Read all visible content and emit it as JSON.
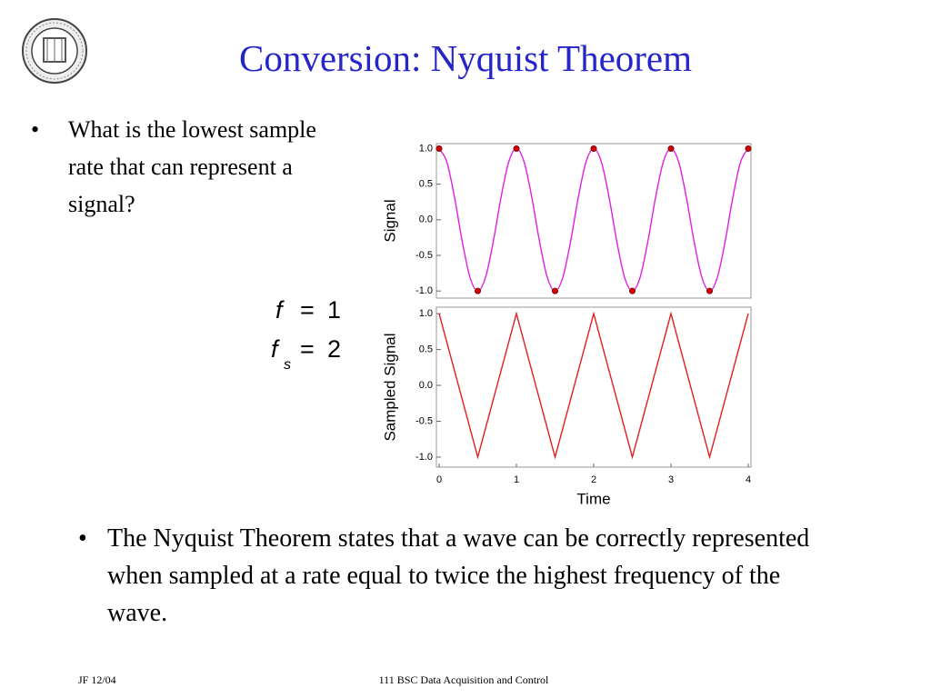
{
  "header": {
    "title": "Conversion: Nyquist Theorem"
  },
  "bullets": [
    "What is the lowest sample rate that can represent a signal?",
    "The Nyquist Theorem states that a wave can be correctly represented when sampled at a rate equal to twice the highest frequency of the wave."
  ],
  "equations": [
    {
      "symbol": "f",
      "operator": "=",
      "value": "1"
    },
    {
      "symbol": "f",
      "subscript": "s",
      "operator": "=",
      "value": "2"
    }
  ],
  "chart_data": [
    {
      "type": "line",
      "ylabel": "Signal",
      "xlim": [
        0,
        4
      ],
      "ylim": [
        -1.1,
        1.07
      ],
      "yticks": [
        {
          "value": -1,
          "label": "-1.0"
        },
        -0.5,
        {
          "value": 0,
          "label": "0.0"
        },
        0.5,
        {
          "value": 1,
          "label": "1.0"
        }
      ],
      "series": [
        {
          "type": "line",
          "color": "#e020e0",
          "x": [
            0,
            0.1,
            0.2,
            0.3,
            0.4,
            0.5,
            0.6,
            0.7,
            0.8,
            0.9,
            1,
            1.1,
            1.2,
            1.3,
            1.4,
            1.5,
            1.6,
            1.7,
            1.8,
            1.9,
            2,
            2.1,
            2.2,
            2.3,
            2.4,
            2.5,
            2.6,
            2.7,
            2.8,
            2.9,
            3,
            3.1,
            3.2,
            3.3,
            3.4,
            3.5,
            3.6,
            3.7,
            3.8,
            3.9,
            4
          ],
          "values": [
            1,
            0.81,
            0.31,
            -0.31,
            -0.81,
            -1,
            -0.81,
            -0.31,
            0.31,
            0.81,
            1,
            0.81,
            0.31,
            -0.31,
            -0.81,
            -1,
            -0.81,
            -0.31,
            0.31,
            0.81,
            1,
            0.81,
            0.31,
            -0.31,
            -0.81,
            -1,
            -0.81,
            -0.31,
            0.31,
            0.81,
            1,
            0.81,
            0.31,
            -0.31,
            -0.81,
            -1,
            -0.81,
            -0.31,
            0.31,
            0.81,
            1
          ]
        },
        {
          "type": "scatter",
          "color": "#cc0000",
          "x": [
            0,
            0.5,
            1,
            1.5,
            2,
            2.5,
            3,
            3.5,
            4
          ],
          "values": [
            1,
            -1,
            1,
            -1,
            1,
            -1,
            1,
            -1,
            1
          ]
        }
      ]
    },
    {
      "type": "line",
      "ylabel": "Sampled Signal",
      "xlabel": "Time",
      "xlim": [
        0,
        4
      ],
      "ylim": [
        -1.14,
        1.09
      ],
      "xticks": [
        0,
        1,
        2,
        3,
        4
      ],
      "yticks": [
        {
          "value": -1,
          "label": "-1.0"
        },
        -0.5,
        {
          "value": 0,
          "label": "0.0"
        },
        0.5,
        {
          "value": 1,
          "label": "1.0"
        }
      ],
      "series": [
        {
          "type": "line",
          "color": "#e02020",
          "x": [
            0,
            0.5,
            1,
            1.5,
            2,
            2.5,
            3,
            3.5,
            4
          ],
          "values": [
            1,
            -1,
            1,
            -1,
            1,
            -1,
            1,
            -1,
            1
          ]
        }
      ]
    }
  ],
  "footer": {
    "left": "JF 12/04",
    "center": "111 BSC Data Acquisition and Control"
  }
}
